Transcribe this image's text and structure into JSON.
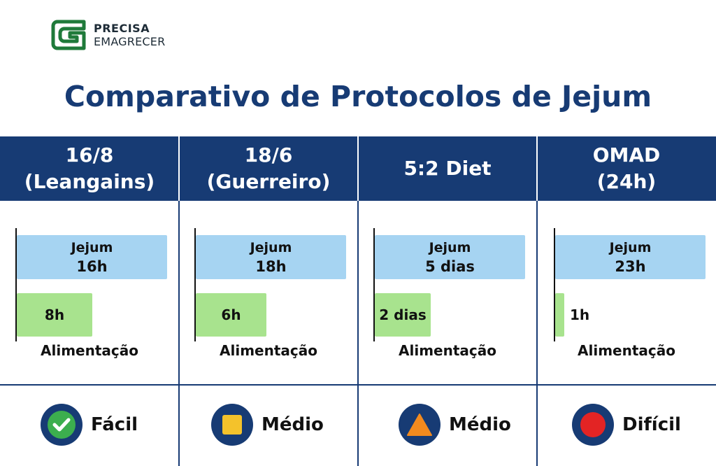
{
  "brand": {
    "line1": "PRECISA",
    "line2": "EMAGRECER",
    "brand_color": "#1f7a3a"
  },
  "page_title": "Comparativo de Protocolos de Jejum",
  "colors": {
    "header": "#173b74",
    "fasting": "#a6d4f2",
    "eating": "#a8e38e",
    "easy": "#3cae4e",
    "medium_square": "#f4c22b",
    "medium_triangle": "#f28a1e",
    "hard": "#e32424"
  },
  "chart_data": {
    "type": "bar",
    "categories": [
      "16/8\n(Leangains)",
      "18/6\n(Guerreiro)",
      "5:2 Diet",
      "OMAD\n(24h)"
    ],
    "series": [
      {
        "name": "Jejum",
        "labels": [
          "16h",
          "18h",
          "5 dias",
          "23h"
        ]
      },
      {
        "name": "Alimentação",
        "labels": [
          "8h",
          "6h",
          "2 dias",
          "1h"
        ],
        "fraction_of_fasting_bar": [
          0.5,
          0.47,
          0.37,
          0.06
        ]
      }
    ],
    "difficulty": [
      {
        "label": "Fácil",
        "icon": "check-icon"
      },
      {
        "label": "Médio",
        "icon": "square-icon"
      },
      {
        "label": "Médio",
        "icon": "triangle-icon"
      },
      {
        "label": "Difícil",
        "icon": "circle-icon"
      }
    ]
  }
}
